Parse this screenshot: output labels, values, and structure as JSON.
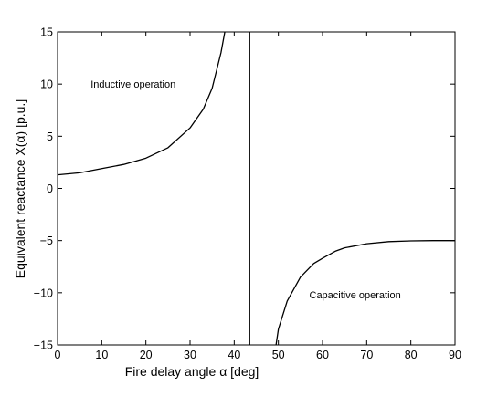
{
  "chart_data": {
    "type": "line",
    "title": "",
    "xlabel": "Fire delay angle α [deg]",
    "ylabel": "Equivalent reactance X(α) [p.u.]",
    "xlim": [
      0,
      90
    ],
    "ylim": [
      -15,
      15
    ],
    "xticks": [
      0,
      10,
      20,
      30,
      40,
      50,
      60,
      70,
      80,
      90
    ],
    "yticks": [
      -15,
      -10,
      -5,
      0,
      5,
      10,
      15
    ],
    "xtick_labels": [
      "0",
      "10",
      "20",
      "30",
      "40",
      "50",
      "60",
      "70",
      "80",
      "90"
    ],
    "ytick_labels": [
      "−15",
      "−10",
      "−5",
      "0",
      "5",
      "10",
      "15"
    ],
    "grid": false,
    "legend": "none",
    "line_color": "#000000",
    "series": [
      {
        "segment": "inductive",
        "x": [
          0,
          5,
          10,
          15,
          20,
          25,
          30,
          33,
          35,
          37,
          38,
          38.5
        ],
        "y": [
          1.3,
          1.5,
          1.9,
          2.3,
          2.9,
          3.9,
          5.8,
          7.6,
          9.6,
          13.0,
          15.3,
          16.5
        ]
      },
      {
        "segment": "resonance",
        "x": [
          43.5,
          43.5
        ],
        "y": [
          15,
          -15
        ]
      },
      {
        "segment": "capacitive",
        "x": [
          49.3,
          50,
          52,
          55,
          58,
          60,
          63,
          65,
          70,
          75,
          80,
          85,
          90
        ],
        "y": [
          -15.5,
          -13.5,
          -10.8,
          -8.5,
          -7.2,
          -6.7,
          -6.0,
          -5.7,
          -5.3,
          -5.1,
          -5.03,
          -5.0,
          -5.0
        ]
      }
    ],
    "annotations": [
      {
        "text": "Inductive operation",
        "x": 7.5,
        "y": 10
      },
      {
        "text": "Capacitive operation",
        "x": 57,
        "y": -10.2
      }
    ]
  }
}
